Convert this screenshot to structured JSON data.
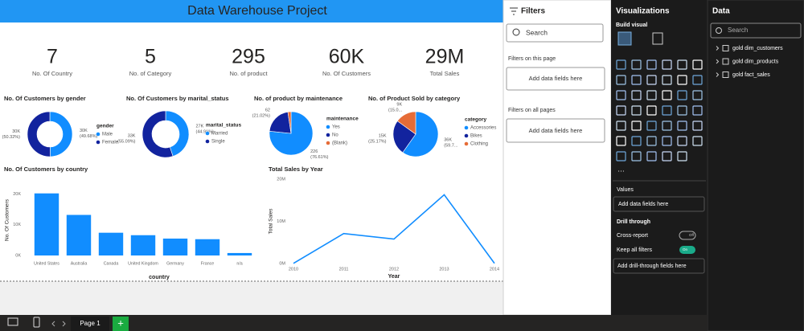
{
  "report": {
    "title": "Data Warehouse Project",
    "page_tab": "Page 1"
  },
  "cards": [
    {
      "value": "7",
      "label": "No. Of Country"
    },
    {
      "value": "5",
      "label": "No. of Category"
    },
    {
      "value": "295",
      "label": "No. of product"
    },
    {
      "value": "60K",
      "label": "No. Of Customers"
    },
    {
      "value": "29M",
      "label": "Total Sales"
    }
  ],
  "chart_data": [
    {
      "type": "donut",
      "title": "No. Of Customers by gender",
      "legend_title": "gender",
      "categories": [
        "Male",
        "Female"
      ],
      "values": [
        49.68,
        50.32
      ],
      "value_labels": [
        "(49.68%)",
        "(50.32%)"
      ],
      "count_labels": [
        "30K",
        "30K"
      ],
      "colors": [
        "#118dff",
        "#12239e"
      ]
    },
    {
      "type": "donut",
      "title": "No. Of Customers by marital_status",
      "legend_title": "marital_status",
      "categories": [
        "Married",
        "Single"
      ],
      "values": [
        44.91,
        55.09
      ],
      "value_labels": [
        "(44.91%)",
        "(55.09%)"
      ],
      "count_labels": [
        "27K",
        "33K"
      ],
      "colors": [
        "#118dff",
        "#12239e"
      ]
    },
    {
      "type": "pie",
      "title": "No. of product by maintenance",
      "legend_title": "maintenance",
      "categories": [
        "Yes",
        "No",
        "(Blank)"
      ],
      "values": [
        76.61,
        21.02,
        2.37
      ],
      "value_labels": [
        "(76.61%)",
        "(21.02%)",
        null
      ],
      "count_labels": [
        "226",
        "62",
        null
      ],
      "colors": [
        "#118dff",
        "#12239e",
        "#e66c37"
      ]
    },
    {
      "type": "pie",
      "title": "No. of Product Sold by category",
      "legend_title": "category",
      "categories": [
        "Accessories",
        "Bikes",
        "Clothing"
      ],
      "values": [
        59.79,
        25.17,
        15.04
      ],
      "value_labels": [
        "(59.7...",
        "(25.17%)",
        "(15.0..."
      ],
      "count_labels": [
        "36K",
        "15K",
        "9K"
      ],
      "colors": [
        "#118dff",
        "#12239e",
        "#e66c37"
      ]
    },
    {
      "type": "bar",
      "title": "No. Of Customers by country",
      "x_label": "country",
      "y_label": "No. Of Customers",
      "categories": [
        "United States",
        "Australia",
        "Canada",
        "United Kingdom",
        "Germany",
        "France",
        "n/a"
      ],
      "values": [
        20200,
        13200,
        7400,
        6600,
        5500,
        5300,
        800
      ],
      "color": "#118dff",
      "ylim": [
        0,
        23000
      ],
      "yticks": [
        {
          "value": 0,
          "label": "0K"
        },
        {
          "value": 10000,
          "label": "10K"
        },
        {
          "value": 20000,
          "label": "20K"
        }
      ],
      "grid": false
    },
    {
      "type": "line",
      "title": "Total Sales by Year",
      "x_label": "Year",
      "y_label": "Total Sales",
      "x": [
        2010,
        2011,
        2012,
        2013,
        2014
      ],
      "values": [
        40000,
        7100000,
        5800000,
        16300000,
        50000
      ],
      "color": "#118dff",
      "xlim": [
        2010,
        2014
      ],
      "xticks": [
        2010,
        2011,
        2012,
        2013,
        2014
      ],
      "ylim": [
        0,
        20000000
      ],
      "yticks": [
        {
          "value": 0,
          "label": "0M"
        },
        {
          "value": 10000000,
          "label": "10M"
        },
        {
          "value": 20000000,
          "label": "20M"
        }
      ],
      "grid": false
    }
  ],
  "filters_pane": {
    "title": "Filters",
    "search": "Search",
    "section_page": "Filters on this page",
    "well_page": "Add data fields here",
    "section_all": "Filters on all pages",
    "well_all": "Add data fields here"
  },
  "visualizations_pane": {
    "title": "Visualizations",
    "build_visual": "Build visual",
    "values_label": "Values",
    "values_well": "Add data fields here",
    "drill_through": "Drill through",
    "cross_report": "Cross-report",
    "cross_report_state": "Off",
    "keep_filters": "Keep all filters",
    "keep_filters_state": "On",
    "drill_well": "Add drill-through fields here"
  },
  "data_pane": {
    "title": "Data",
    "search": "Search",
    "tables": [
      "gold dim_customers",
      "gold dim_products",
      "gold fact_sales"
    ]
  }
}
